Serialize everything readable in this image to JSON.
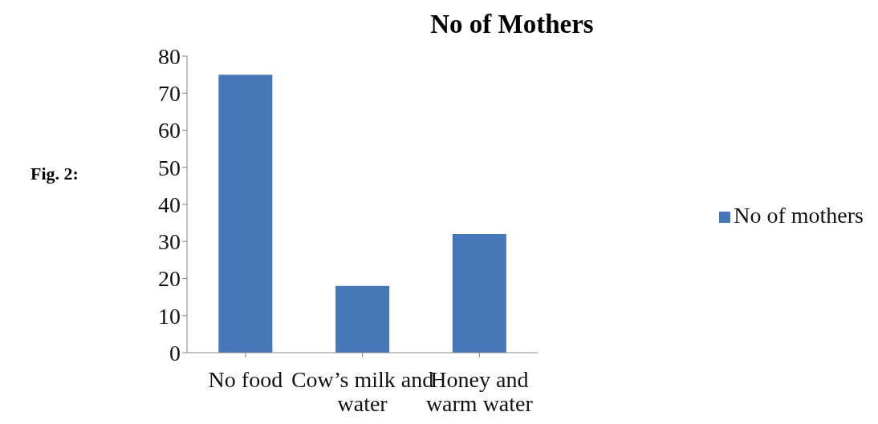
{
  "chart_data": {
    "type": "bar",
    "title": "No of Mothers",
    "annotations": [
      "Fig. 2:"
    ],
    "categories": [
      "No food",
      "Cow’s milk and water",
      "Honey and warm water"
    ],
    "series": [
      {
        "name": "No of mothers",
        "color": "#4677b9",
        "values": [
          75,
          18,
          32
        ]
      }
    ],
    "ylim": [
      0,
      80
    ],
    "yticks": [
      0,
      10,
      20,
      30,
      40,
      50,
      60,
      70,
      80
    ],
    "grid": false,
    "legend": "right"
  }
}
